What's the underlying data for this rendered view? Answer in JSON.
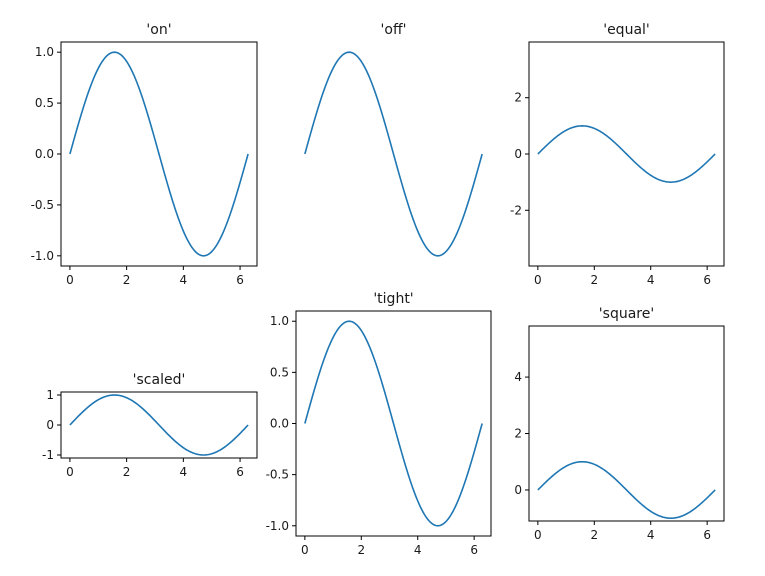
{
  "chart_data": [
    {
      "type": "line",
      "title": "'on'",
      "axis": "on",
      "xlim": [
        -0.314,
        6.597
      ],
      "ylim": [
        -1.1,
        1.1
      ],
      "xticks": [
        0,
        2,
        4,
        6
      ],
      "xtick_labels": [
        "0",
        "2",
        "4",
        "6"
      ],
      "yticks": [
        1.0,
        0.5,
        0.0,
        -0.5,
        -1.0
      ],
      "ytick_labels": [
        "1.0",
        "0.5",
        "0.0",
        "-0.5",
        "-1.0"
      ],
      "series": [
        {
          "function": "sin(x)",
          "x_range": [
            0,
            6.283
          ],
          "color": "#1f77b4"
        }
      ]
    },
    {
      "type": "line",
      "title": "'off'",
      "axis": "off",
      "xlim": [
        -0.314,
        6.597
      ],
      "ylim": [
        -1.1,
        1.1
      ],
      "xticks": [],
      "xtick_labels": [],
      "yticks": [],
      "ytick_labels": [],
      "series": [
        {
          "function": "sin(x)",
          "x_range": [
            0,
            6.283
          ],
          "color": "#1f77b4"
        }
      ]
    },
    {
      "type": "line",
      "title": "'equal'",
      "axis": "equal",
      "xlim": [
        -0.314,
        6.597
      ],
      "ylim": [
        -3.98,
        3.98
      ],
      "xticks": [
        0,
        2,
        4,
        6
      ],
      "xtick_labels": [
        "0",
        "2",
        "4",
        "6"
      ],
      "yticks": [
        2,
        0,
        -2
      ],
      "ytick_labels": [
        "2",
        "0",
        "-2"
      ],
      "series": [
        {
          "function": "sin(x)",
          "x_range": [
            0,
            6.283
          ],
          "color": "#1f77b4"
        }
      ]
    },
    {
      "type": "line",
      "title": "'scaled'",
      "axis": "scaled",
      "xlim": [
        -0.314,
        6.597
      ],
      "ylim": [
        -1.1,
        1.1
      ],
      "xticks": [
        0,
        2,
        4,
        6
      ],
      "xtick_labels": [
        "0",
        "2",
        "4",
        "6"
      ],
      "yticks": [
        1,
        0,
        -1
      ],
      "ytick_labels": [
        "1",
        "0",
        "-1"
      ],
      "series": [
        {
          "function": "sin(x)",
          "x_range": [
            0,
            6.283
          ],
          "color": "#1f77b4"
        }
      ]
    },
    {
      "type": "line",
      "title": "'tight'",
      "axis": "tight",
      "xlim": [
        -0.314,
        6.597
      ],
      "ylim": [
        -1.1,
        1.1
      ],
      "xticks": [
        0,
        2,
        4,
        6
      ],
      "xtick_labels": [
        "0",
        "2",
        "4",
        "6"
      ],
      "yticks": [
        1.0,
        0.5,
        0.0,
        -0.5,
        -1.0
      ],
      "ytick_labels": [
        "1.0",
        "0.5",
        "0.0",
        "-0.5",
        "-1.0"
      ],
      "series": [
        {
          "function": "sin(x)",
          "x_range": [
            0,
            6.283
          ],
          "color": "#1f77b4"
        }
      ]
    },
    {
      "type": "line",
      "title": "'square'",
      "axis": "square",
      "xlim": [
        -0.314,
        6.597
      ],
      "ylim": [
        -1.1,
        5.81
      ],
      "xticks": [
        0,
        2,
        4,
        6
      ],
      "xtick_labels": [
        "0",
        "2",
        "4",
        "6"
      ],
      "yticks": [
        4,
        2,
        0
      ],
      "ytick_labels": [
        "4",
        "2",
        "0"
      ],
      "series": [
        {
          "function": "sin(x)",
          "x_range": [
            0,
            6.283
          ],
          "color": "#1f77b4"
        }
      ]
    }
  ]
}
